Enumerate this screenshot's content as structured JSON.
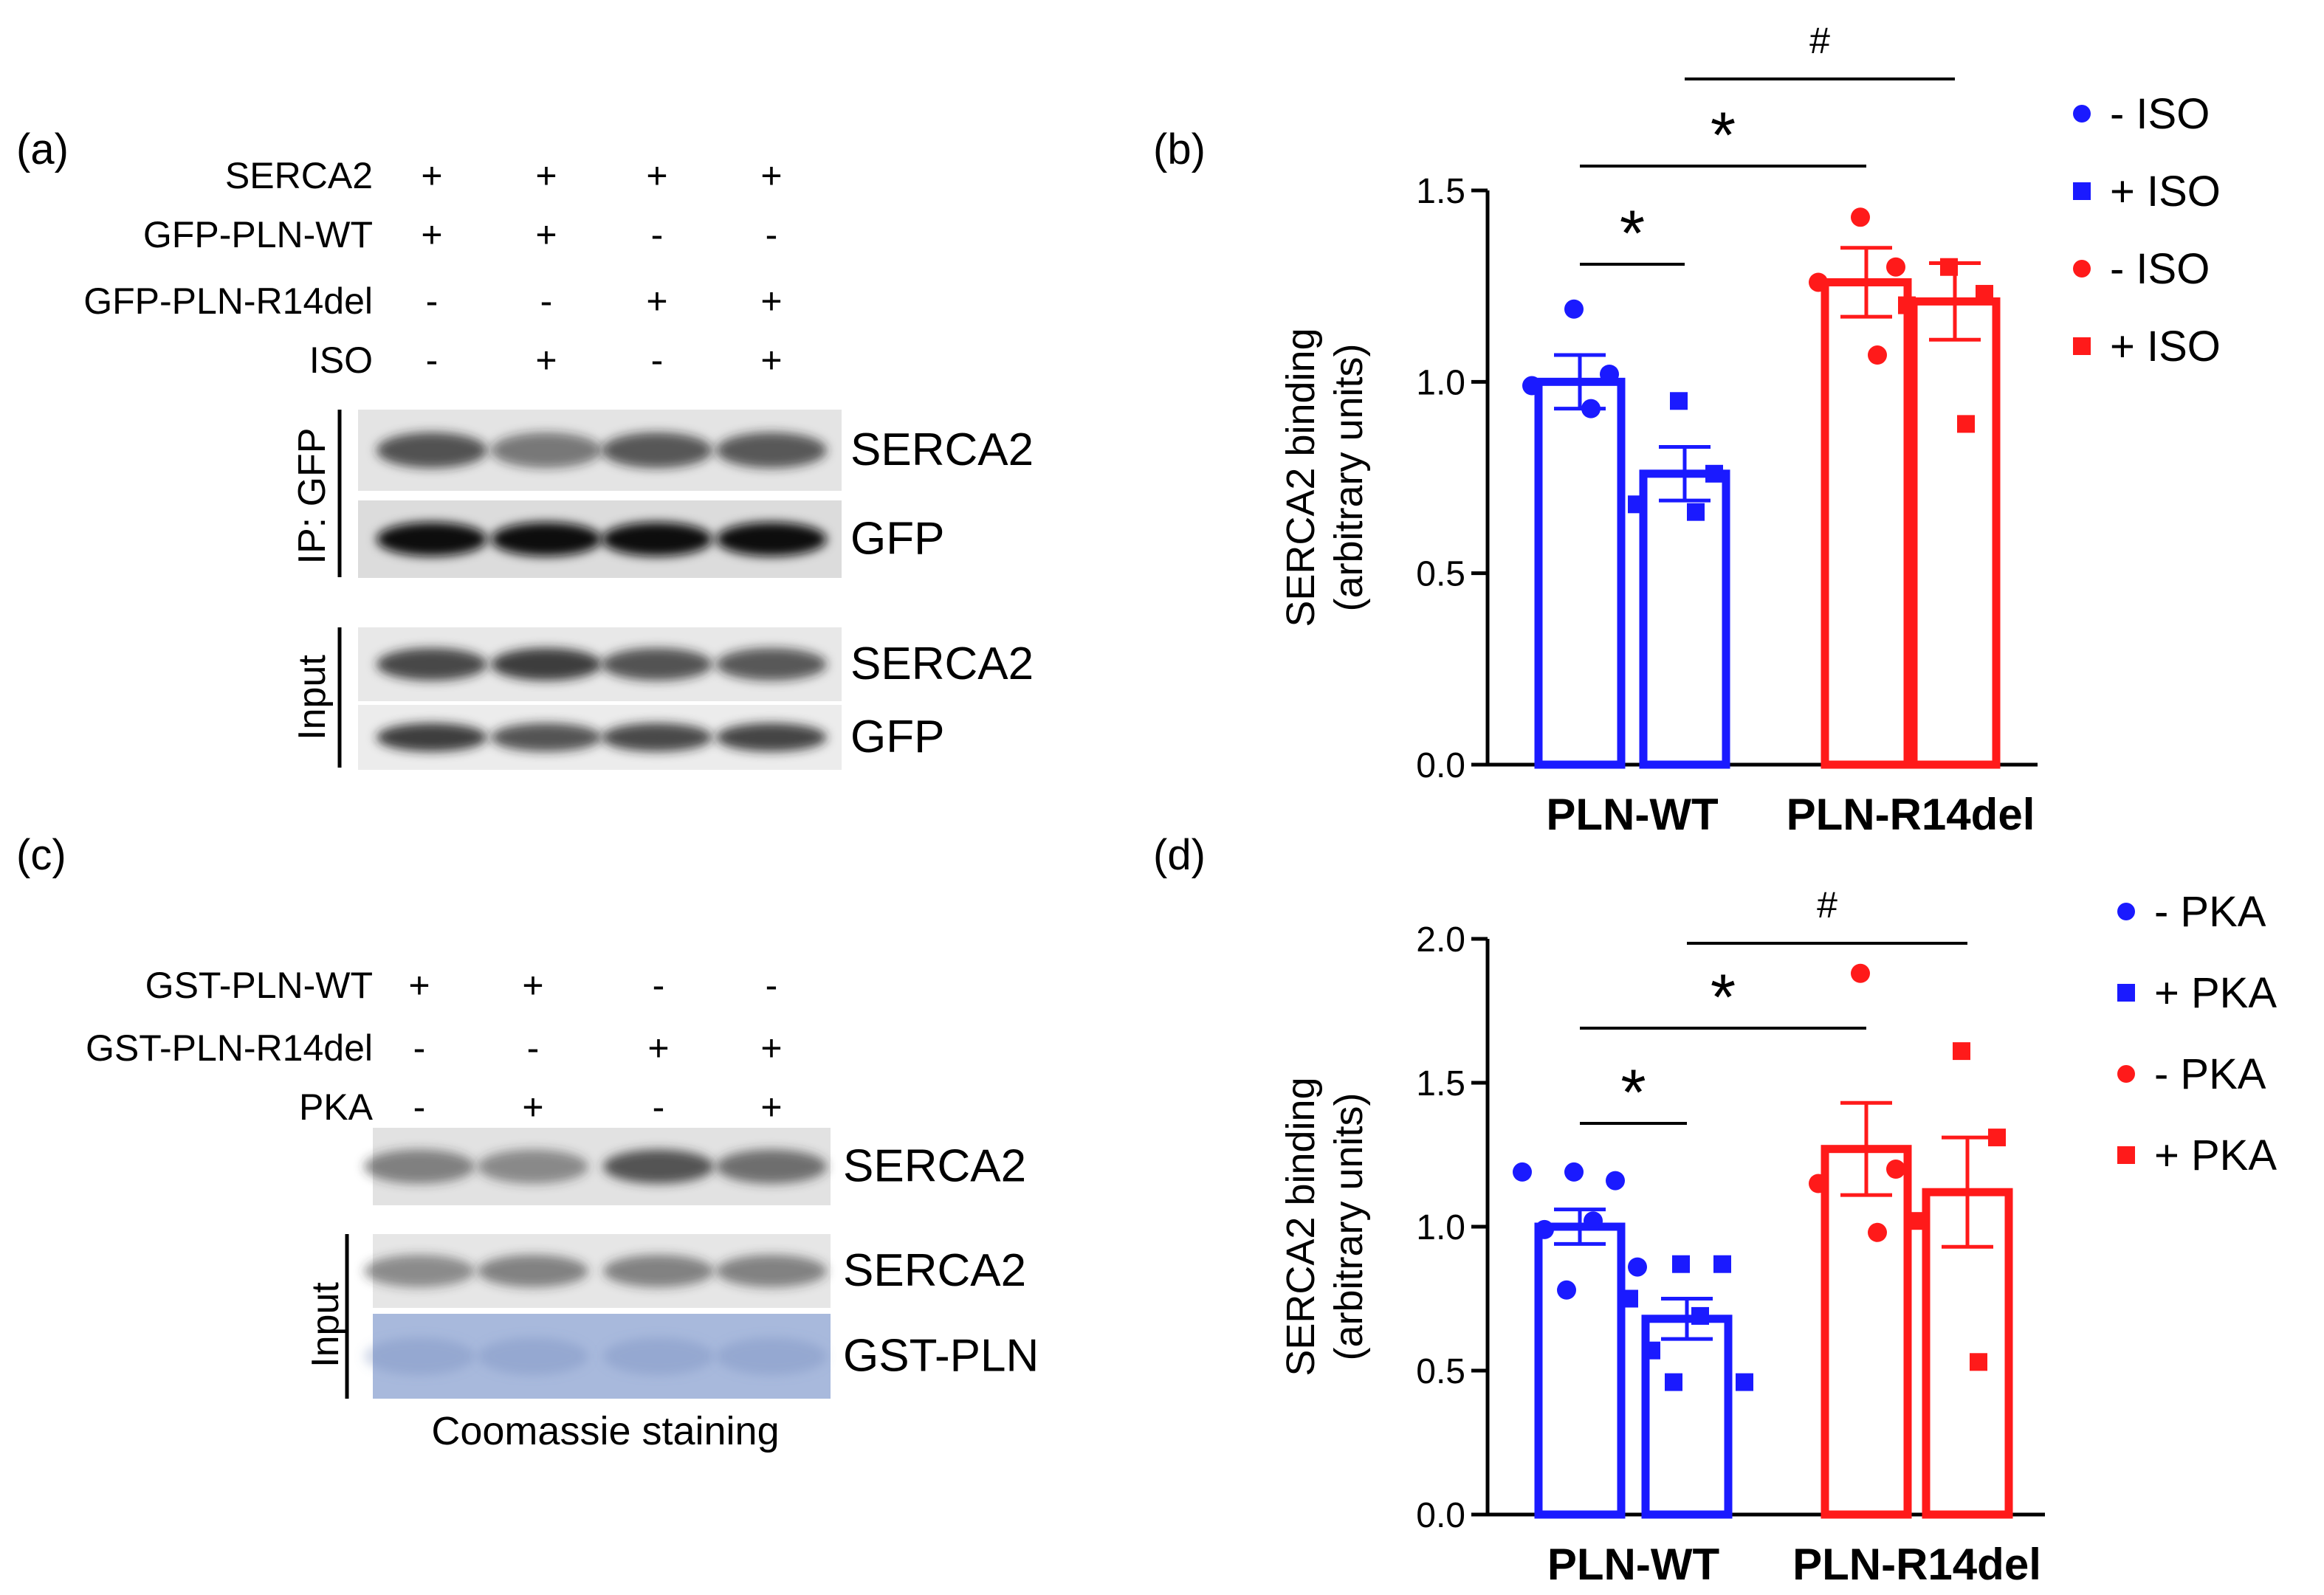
{
  "panels": {
    "a": {
      "label": "(a)",
      "lane_rows": [
        {
          "name": "SERCA2",
          "signs": [
            "+",
            "+",
            "+",
            "+"
          ]
        },
        {
          "name": "GFP-PLN-WT",
          "signs": [
            "+",
            "+",
            "-",
            "-"
          ]
        },
        {
          "name": "GFP-PLN-R14del",
          "signs": [
            "-",
            "-",
            "+",
            "+"
          ]
        },
        {
          "name": "ISO",
          "signs": [
            "-",
            "+",
            "-",
            "+"
          ]
        }
      ],
      "group_ip": "IP: GFP",
      "group_input": "Input",
      "blots": [
        {
          "label": "SERCA2",
          "intensity": [
            0.75,
            0.55,
            0.7,
            0.72
          ]
        },
        {
          "label": "GFP",
          "intensity": [
            1.0,
            1.0,
            1.0,
            1.0
          ]
        },
        {
          "label": "SERCA2",
          "intensity": [
            0.8,
            0.85,
            0.75,
            0.7
          ]
        },
        {
          "label": "GFP",
          "intensity": [
            0.85,
            0.75,
            0.8,
            0.82
          ]
        }
      ]
    },
    "c": {
      "label": "(c)",
      "lane_rows": [
        {
          "name": "GST-PLN-WT",
          "signs": [
            "+",
            "+",
            "-",
            "-"
          ]
        },
        {
          "name": "GST-PLN-R14del",
          "signs": [
            "-",
            "-",
            "+",
            "+"
          ]
        },
        {
          "name": "PKA",
          "signs": [
            "-",
            "+",
            "-",
            "+"
          ]
        }
      ],
      "group_input": "Input",
      "blots": [
        {
          "label": "SERCA2",
          "intensity": [
            0.55,
            0.5,
            0.8,
            0.65
          ]
        },
        {
          "label": "SERCA2",
          "intensity": [
            0.5,
            0.55,
            0.55,
            0.55
          ]
        },
        {
          "label": "GST-PLN",
          "intensity": [
            0.3,
            0.3,
            0.3,
            0.3
          ]
        }
      ],
      "caption": "Coomassie staining"
    }
  },
  "chart_data": [
    {
      "panel": "(b)",
      "type": "bar",
      "categories": [
        "PLN-WT",
        "PLN-R14del"
      ],
      "ylabel_line1": "SERCA2 binding",
      "ylabel_line2": "(arbitrary units)",
      "ylim": [
        0,
        1.5
      ],
      "yticks": [
        "0.0",
        "0.5",
        "1.0",
        "1.5"
      ],
      "series": [
        {
          "name": "- ISO",
          "category": "PLN-WT",
          "color": "#1a1aff",
          "marker": "circle",
          "mean": 1.0,
          "sem": 0.07,
          "points": [
            1.19,
            1.02,
            0.99,
            0.93
          ]
        },
        {
          "name": "+ ISO",
          "category": "PLN-WT",
          "color": "#1a1aff",
          "marker": "square",
          "mean": 0.76,
          "sem": 0.07,
          "points": [
            0.95,
            0.76,
            0.68,
            0.66
          ]
        },
        {
          "name": "- ISO",
          "category": "PLN-R14del",
          "color": "#ff1a1a",
          "marker": "circle",
          "mean": 1.26,
          "sem": 0.09,
          "points": [
            1.43,
            1.3,
            1.26,
            1.07
          ]
        },
        {
          "name": "+ ISO",
          "category": "PLN-R14del",
          "color": "#ff1a1a",
          "marker": "square",
          "mean": 1.21,
          "sem": 0.1,
          "points": [
            1.3,
            1.23,
            1.2,
            0.89
          ]
        }
      ],
      "significance": [
        {
          "from": 0,
          "to": 1,
          "symbol": "*"
        },
        {
          "from": 0,
          "to": 2,
          "symbol": "*"
        },
        {
          "from": 1,
          "to": 3,
          "symbol": "#"
        }
      ],
      "legend": [
        "- ISO",
        "+ ISO",
        "- ISO",
        "+ ISO"
      ]
    },
    {
      "panel": "(d)",
      "type": "bar",
      "categories": [
        "PLN-WT",
        "PLN-R14del"
      ],
      "ylabel_line1": "SERCA2 binding",
      "ylabel_line2": "(arbitrary units)",
      "ylim": [
        0,
        2.0
      ],
      "yticks": [
        "0.0",
        "0.5",
        "1.0",
        "1.5",
        "2.0"
      ],
      "series": [
        {
          "name": "- PKA",
          "category": "PLN-WT",
          "color": "#1a1aff",
          "marker": "circle",
          "mean": 1.0,
          "sem": 0.06,
          "points": [
            1.19,
            1.16,
            1.19,
            1.02,
            0.99,
            0.86,
            0.78
          ]
        },
        {
          "name": "+ PKA",
          "category": "PLN-WT",
          "color": "#1a1aff",
          "marker": "square",
          "mean": 0.68,
          "sem": 0.07,
          "points": [
            0.87,
            0.87,
            0.75,
            0.69,
            0.57,
            0.46,
            0.46
          ]
        },
        {
          "name": "- PKA",
          "category": "PLN-R14del",
          "color": "#ff1a1a",
          "marker": "circle",
          "mean": 1.27,
          "sem": 0.16,
          "points": [
            1.88,
            1.2,
            1.15,
            0.98
          ]
        },
        {
          "name": "+ PKA",
          "category": "PLN-R14del",
          "color": "#ff1a1a",
          "marker": "square",
          "mean": 1.12,
          "sem": 0.19,
          "points": [
            1.61,
            1.31,
            1.02,
            0.53
          ]
        }
      ],
      "significance": [
        {
          "from": 0,
          "to": 1,
          "symbol": "*"
        },
        {
          "from": 0,
          "to": 2,
          "symbol": "*"
        },
        {
          "from": 1,
          "to": 3,
          "symbol": "#"
        }
      ],
      "legend": [
        "- PKA",
        "+ PKA",
        "- PKA",
        "+ PKA"
      ]
    }
  ]
}
